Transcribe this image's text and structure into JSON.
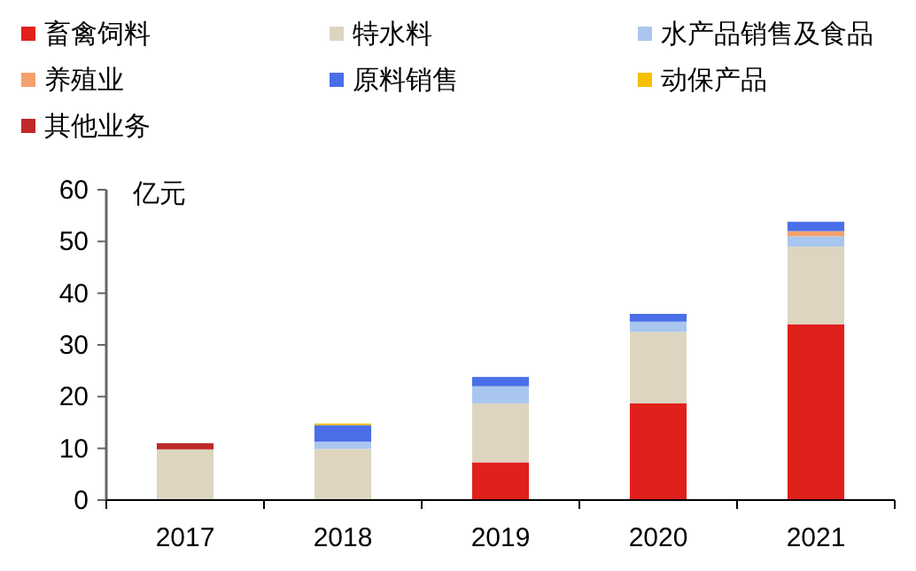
{
  "chart_data": {
    "type": "bar",
    "stacked": true,
    "ylabel": "亿元",
    "categories": [
      "2017",
      "2018",
      "2019",
      "2020",
      "2021"
    ],
    "series": [
      {
        "name": "畜禽饲料",
        "color": "#e0201b",
        "values": [
          null,
          null,
          7.3,
          18.7,
          34
        ]
      },
      {
        "name": "特水料",
        "color": "#ddd5c0",
        "values": [
          9.8,
          9.9,
          11.4,
          13.8,
          15
        ]
      },
      {
        "name": "水产品销售及食品",
        "color": "#a9c6ef",
        "values": [
          null,
          1.4,
          3.3,
          2,
          2
        ]
      },
      {
        "name": "养殖业",
        "color": "#f4a06c",
        "values": [
          null,
          null,
          null,
          null,
          1
        ]
      },
      {
        "name": "原料销售",
        "color": "#4a6ee8",
        "values": [
          null,
          3.2,
          1.8,
          1.5,
          1.8
        ]
      },
      {
        "name": "动保产品",
        "color": "#f5c000",
        "values": [
          null,
          0.3,
          null,
          null,
          null
        ]
      },
      {
        "name": "其他业务",
        "color": "#c0282a",
        "values": [
          1.2,
          null,
          null,
          null,
          null
        ]
      }
    ],
    "ylim": [
      0,
      60
    ],
    "yticks": [
      0,
      10,
      20,
      30,
      40,
      50,
      60
    ],
    "grid": false,
    "legend": "top"
  }
}
